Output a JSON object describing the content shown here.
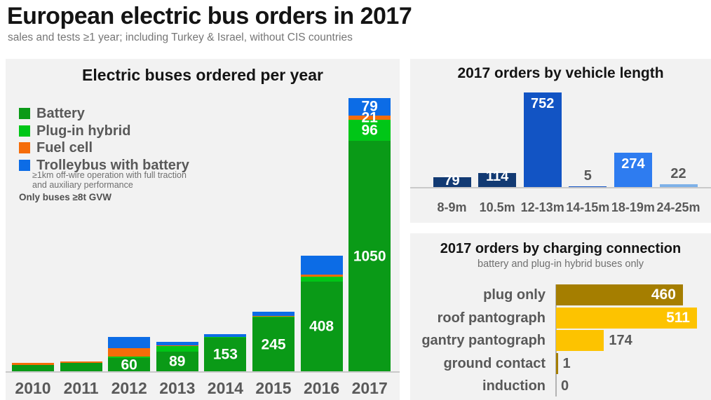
{
  "page": {
    "title": "European electric bus orders in 2017",
    "subtitle": "sales and tests ≥1 year; including Turkey & Israel, without CIS countries"
  },
  "chart_data": [
    {
      "type": "bar",
      "stacked": true,
      "title": "Electric buses ordered per year",
      "categories": [
        "2010",
        "2011",
        "2012",
        "2013",
        "2014",
        "2015",
        "2016",
        "2017"
      ],
      "ylim": [
        0,
        1250
      ],
      "legend_position": "upper left",
      "legend_note_line1": "≥1km off-wire operation with full traction",
      "legend_note_line2": "and auxiliary performance",
      "footnote": "Only buses ≥8t GVW",
      "series": [
        {
          "name": "Battery",
          "color": "#0a9a17",
          "values": [
            30,
            38,
            60,
            89,
            153,
            245,
            408,
            1050
          ],
          "labels": [
            null,
            null,
            "60",
            "89",
            "153",
            "245",
            "408",
            "1050"
          ]
        },
        {
          "name": "Plug-in hybrid",
          "color": "#00c617",
          "values": [
            0,
            0,
            6,
            25,
            4,
            5,
            25,
            96
          ],
          "labels": [
            null,
            null,
            null,
            null,
            null,
            null,
            null,
            "96"
          ]
        },
        {
          "name": "Fuel cell",
          "color": "#f56c09",
          "values": [
            9,
            6,
            38,
            5,
            0,
            3,
            8,
            21
          ],
          "labels": [
            null,
            null,
            null,
            null,
            null,
            null,
            null,
            "21"
          ]
        },
        {
          "name": "Trolleybus with battery",
          "color": "#0c6ce6",
          "values": [
            0,
            0,
            54,
            15,
            12,
            20,
            85,
            79
          ],
          "labels": [
            null,
            null,
            null,
            null,
            null,
            null,
            null,
            "79"
          ]
        }
      ]
    },
    {
      "type": "bar",
      "title": "2017 orders by vehicle length",
      "categories": [
        "8-9m",
        "10.5m",
        "12-13m",
        "14-15m",
        "18-19m",
        "24-25m"
      ],
      "values": [
        79,
        114,
        752,
        5,
        274,
        22
      ],
      "bar_colors": [
        "#123a73",
        "#123a73",
        "#1254c4",
        "#1254c4",
        "#2e7cf0",
        "#7eb1e8"
      ],
      "label_pos": [
        "inside",
        "inside",
        "inside",
        "above",
        "inside",
        "above"
      ],
      "ylim": [
        0,
        800
      ],
      "grid": false
    },
    {
      "type": "bar_horizontal",
      "title": "2017 orders by charging connection",
      "subtitle": "battery and plug-in hybrid buses only",
      "categories": [
        "plug only",
        "roof pantograph",
        "gantry pantograph",
        "ground contact",
        "induction"
      ],
      "values": [
        460,
        511,
        174,
        1,
        0
      ],
      "bar_colors": [
        "#a57e00",
        "#fdc300",
        "#fdc300",
        "#a57e00",
        "#fdc300"
      ],
      "xlim": [
        0,
        520
      ],
      "grid": false
    }
  ]
}
